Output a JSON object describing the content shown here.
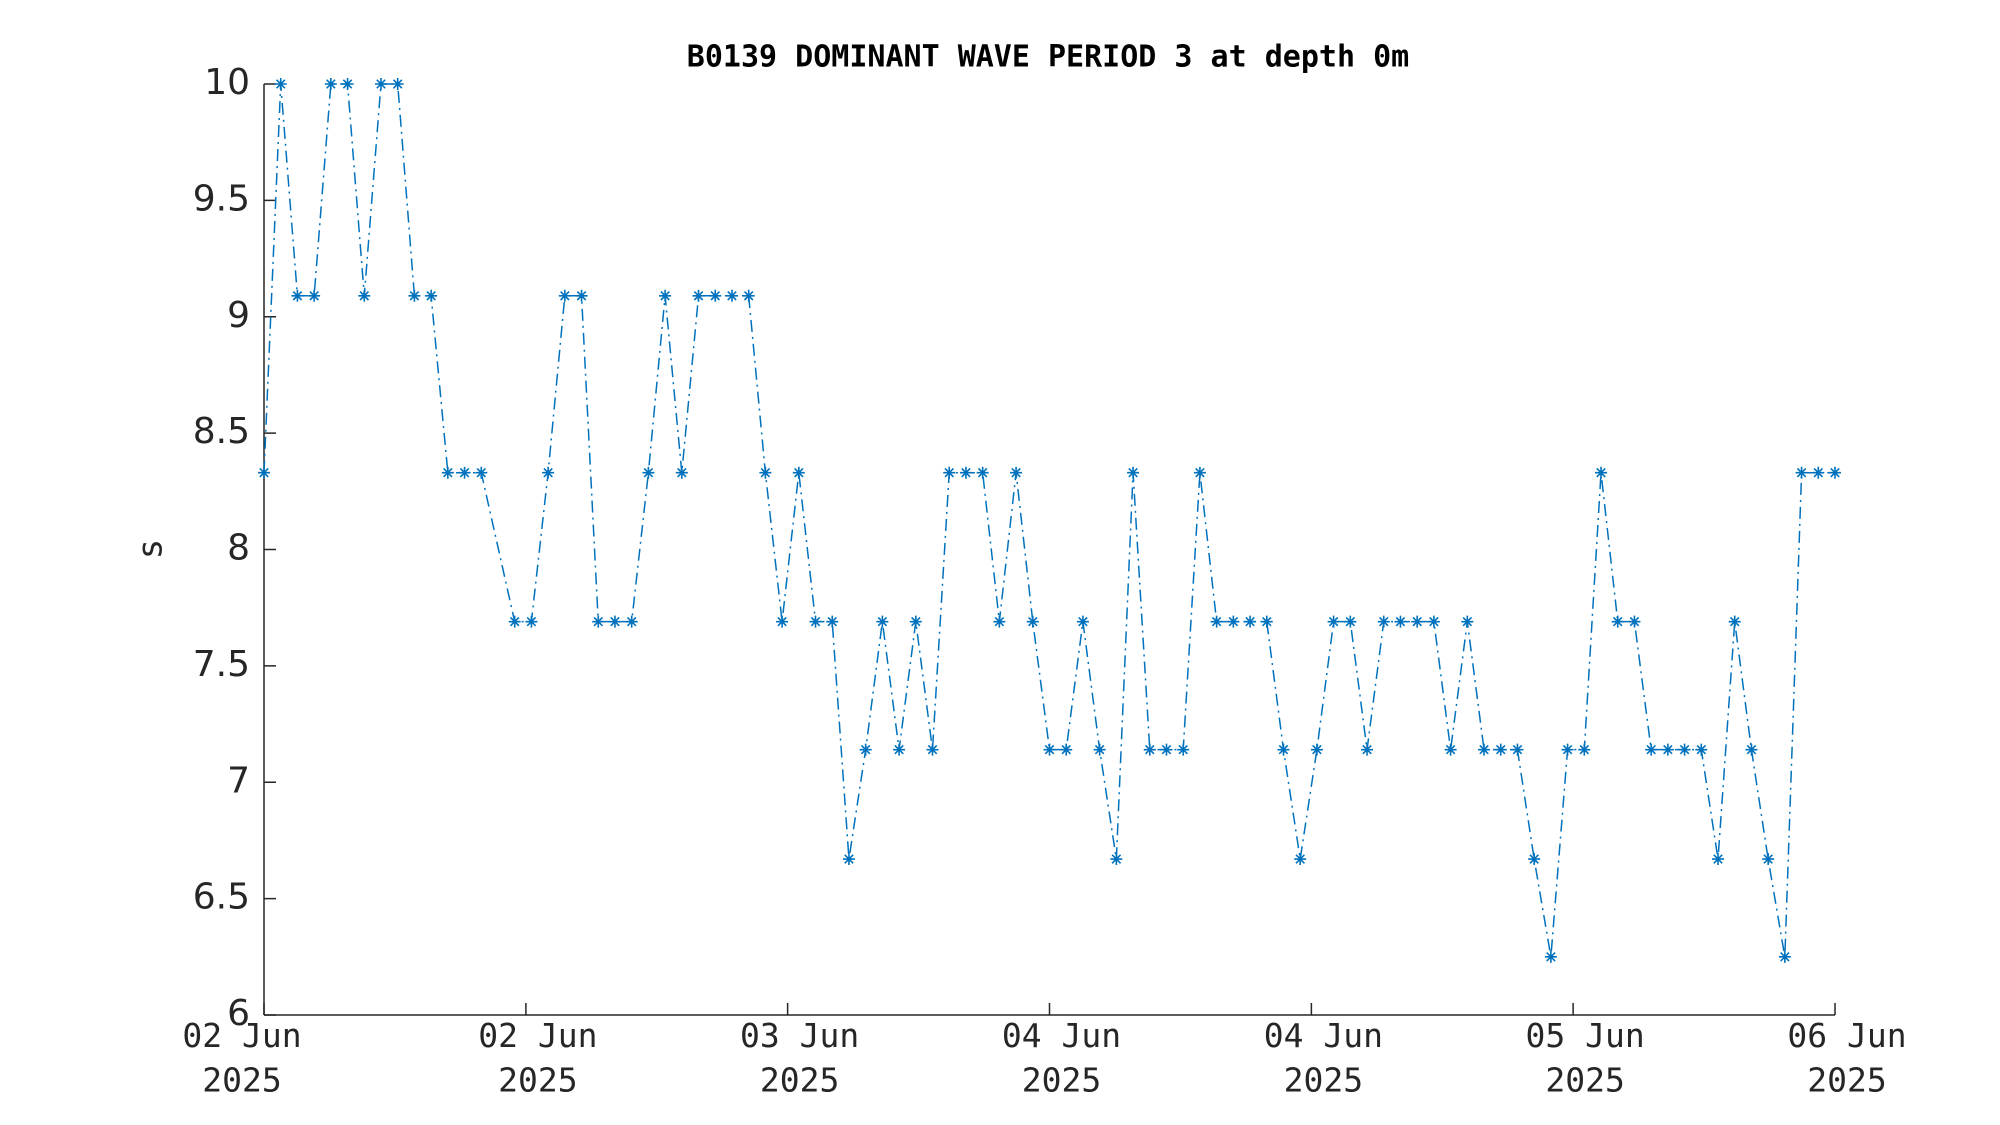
{
  "chart_data": {
    "type": "line",
    "title": "B0139 DOMINANT WAVE PERIOD 3 at depth 0m",
    "y_label": "s",
    "x": [
      0,
      1,
      2,
      3,
      4,
      5,
      6,
      7,
      8,
      9,
      10,
      11,
      12,
      13,
      15,
      16,
      17,
      18,
      19,
      20,
      21,
      22,
      23,
      24,
      25,
      26,
      27,
      28,
      29,
      30,
      31,
      32,
      33,
      34,
      35,
      36,
      37,
      38,
      39,
      40,
      41,
      42,
      43,
      44,
      45,
      46,
      47,
      48,
      49,
      50,
      51,
      52,
      53,
      54,
      55,
      56,
      57,
      58,
      59,
      60,
      61,
      62,
      63,
      64,
      65,
      66,
      67,
      68,
      69,
      70,
      71,
      72,
      73,
      74,
      75,
      76,
      77,
      78,
      79,
      80,
      81,
      82,
      83,
      84,
      85,
      86,
      87,
      88,
      89,
      90,
      91,
      92,
      93,
      94
    ],
    "series": [
      {
        "name": "B0139",
        "color": "#0072bd",
        "values": [
          8.33,
          10,
          9.09,
          9.09,
          10,
          10,
          9.09,
          10,
          10,
          9.09,
          9.09,
          8.33,
          8.33,
          8.33,
          7.69,
          7.69,
          8.33,
          9.09,
          9.09,
          7.69,
          7.69,
          7.69,
          8.33,
          9.09,
          8.33,
          9.09,
          9.09,
          9.09,
          9.09,
          8.33,
          7.69,
          8.33,
          7.69,
          7.69,
          6.67,
          7.14,
          7.69,
          7.14,
          7.69,
          7.14,
          8.33,
          8.33,
          8.33,
          7.69,
          8.33,
          7.69,
          7.14,
          7.14,
          7.69,
          7.14,
          6.67,
          8.33,
          7.14,
          7.14,
          7.14,
          8.33,
          7.69,
          7.69,
          7.69,
          7.69,
          7.14,
          6.67,
          7.14,
          7.69,
          7.69,
          7.14,
          7.69,
          7.69,
          7.69,
          7.69,
          7.14,
          7.69,
          7.14,
          7.14,
          7.14,
          6.67,
          6.25,
          7.14,
          7.14,
          8.33,
          7.69,
          7.69,
          7.14,
          7.14,
          7.14,
          7.14,
          6.67,
          7.69,
          7.14,
          6.67,
          6.25,
          8.33,
          8.33,
          8.33
        ]
      }
    ],
    "xlim": [
      0,
      94
    ],
    "xticks": [
      {
        "value": 0,
        "label": "02 Jun\n2025"
      },
      {
        "value": 15.67,
        "label": "02 Jun\n2025"
      },
      {
        "value": 31.33,
        "label": "03 Jun\n2025"
      },
      {
        "value": 47,
        "label": "04 Jun\n2025"
      },
      {
        "value": 62.67,
        "label": "04 Jun\n2025"
      },
      {
        "value": 78.33,
        "label": "05 Jun\n2025"
      },
      {
        "value": 94,
        "label": "06 Jun\n2025"
      }
    ],
    "ylim": [
      6,
      10
    ],
    "yticks": [
      6,
      6.5,
      7,
      7.5,
      8,
      8.5,
      9,
      9.5,
      10
    ],
    "grid": false
  }
}
